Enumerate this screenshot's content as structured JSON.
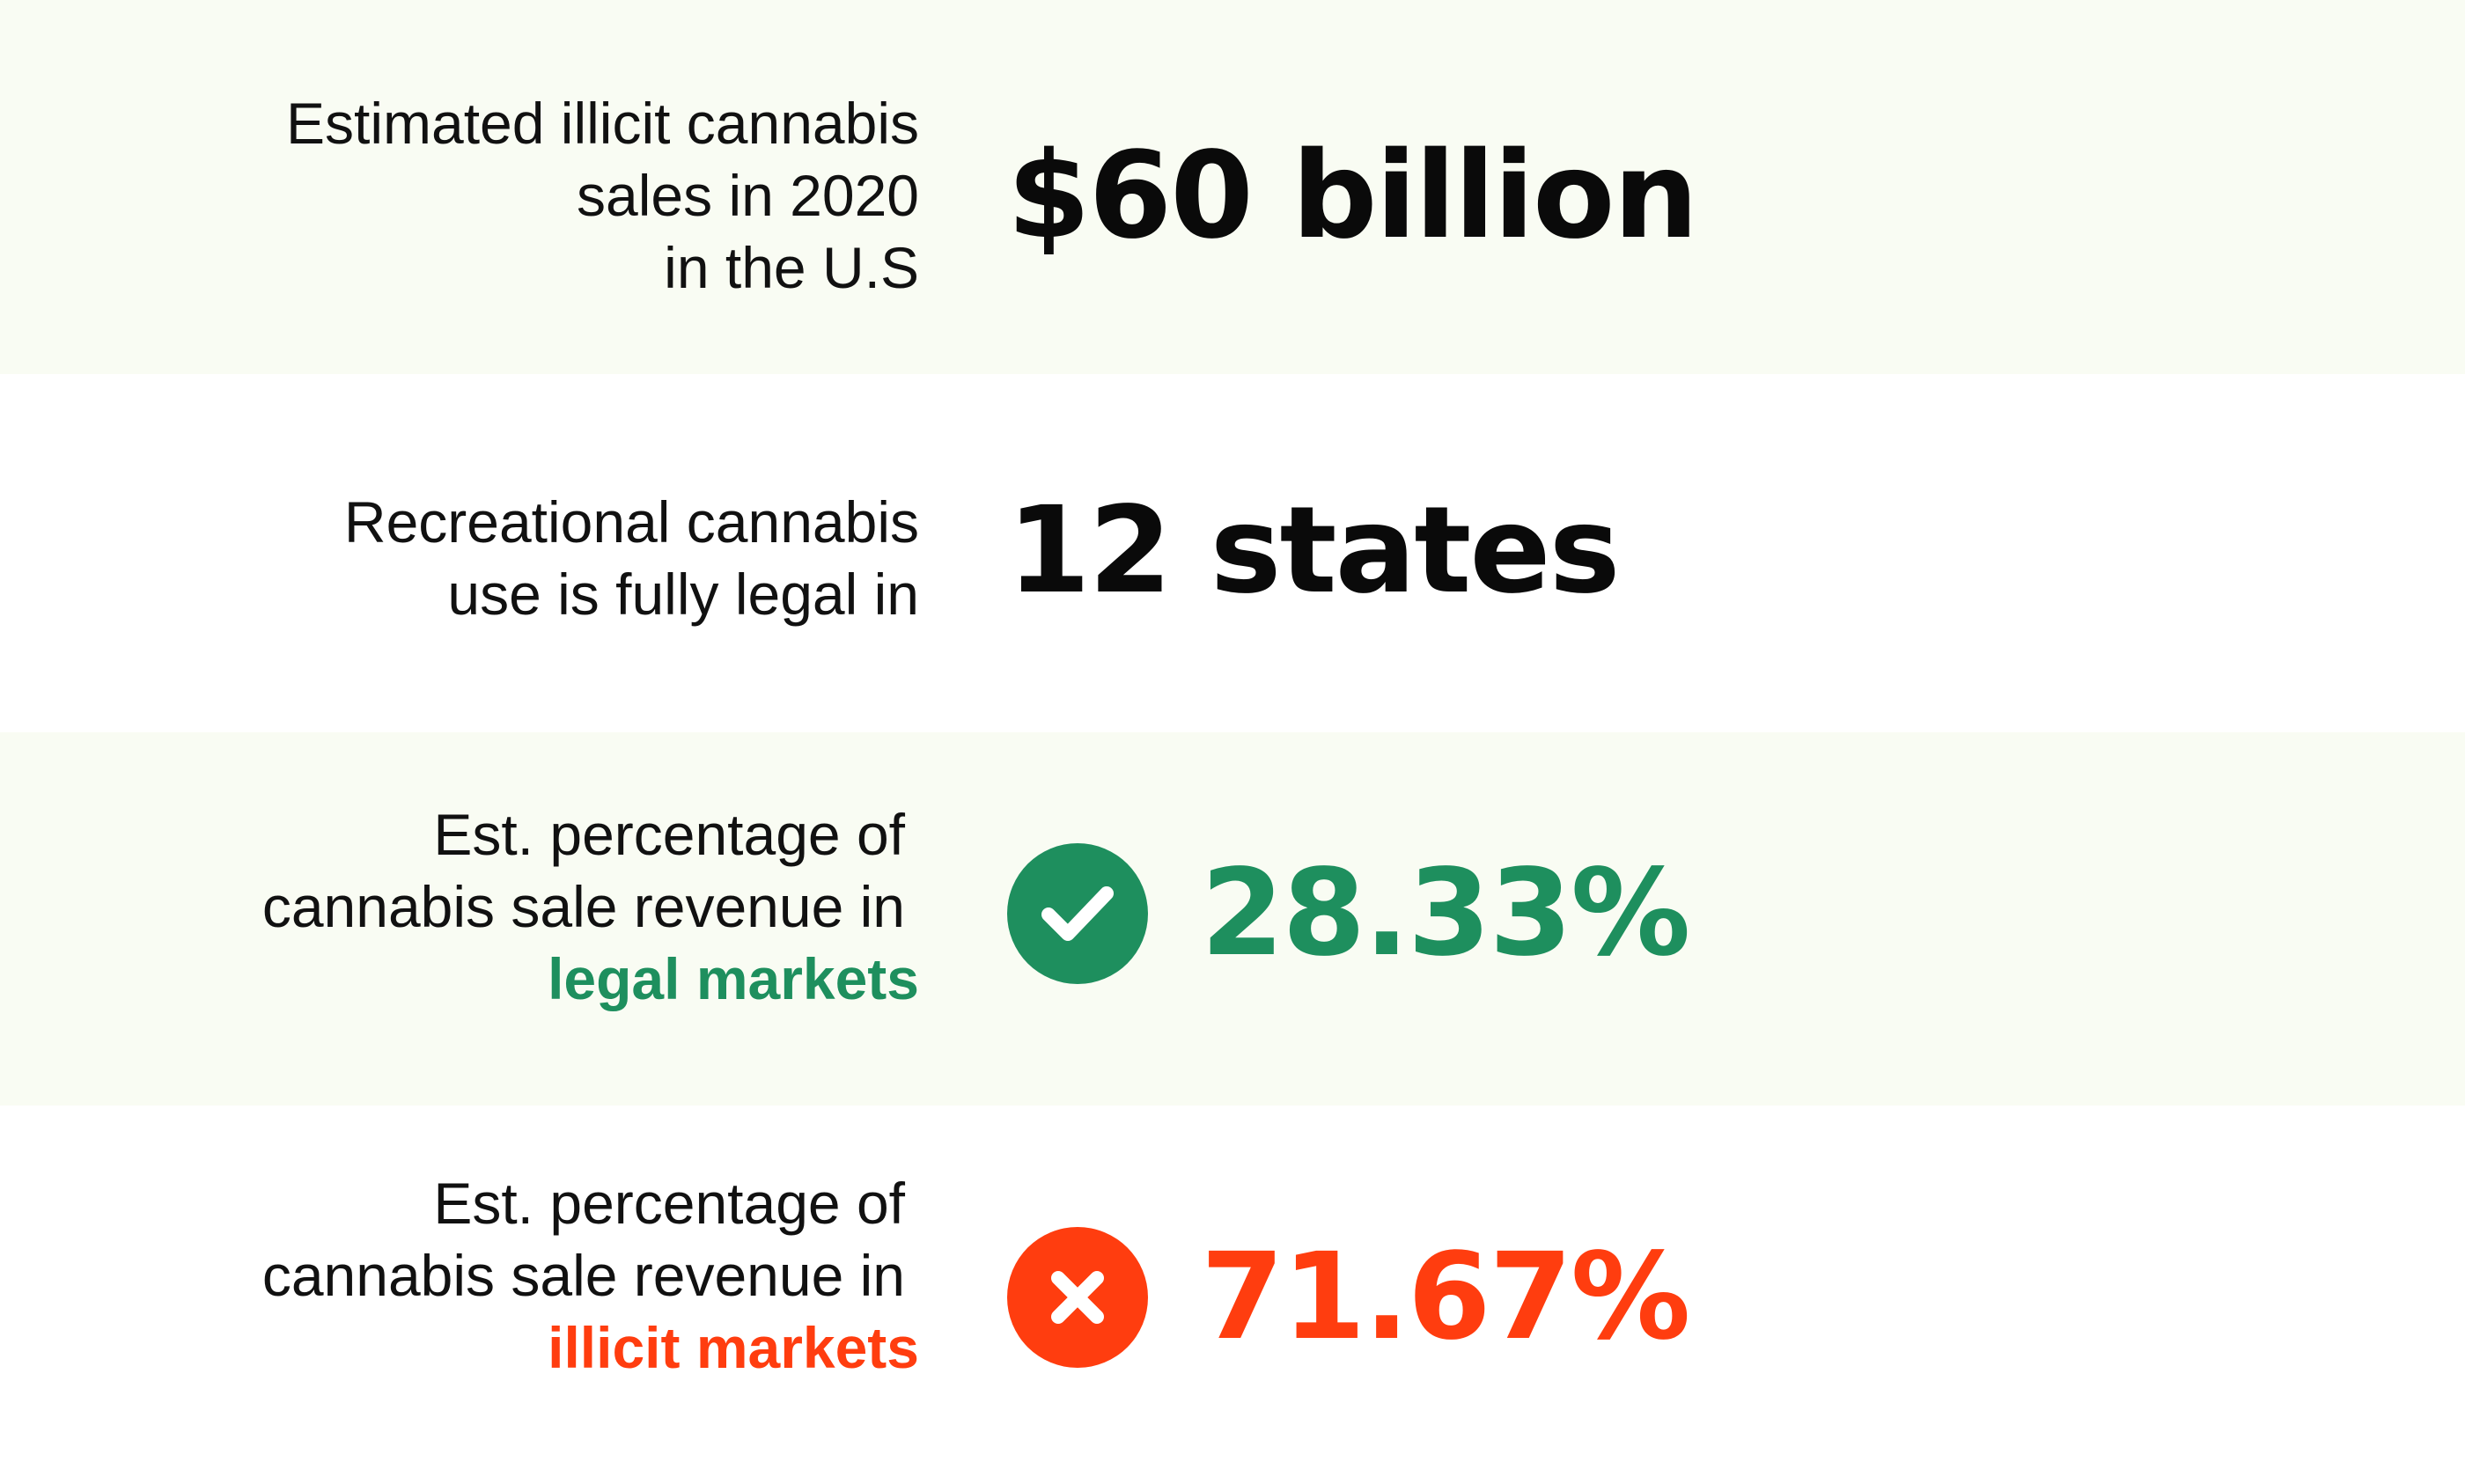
{
  "colors": {
    "tint_background": "#f9fcf3",
    "text": "#111111",
    "legal_green": "#1e8f5e",
    "illicit_red": "#ff3d0f"
  },
  "stats": [
    {
      "label_lines": [
        "Estimated illicit cannabis",
        "sales in 2020",
        "in the U.S"
      ],
      "value": "$60 billion"
    },
    {
      "label_lines": [
        "Recreational cannabis",
        "use is fully legal in"
      ],
      "value": "12 states"
    },
    {
      "label_lines": [
        "Est. percentage of",
        "cannabis sale revenue in"
      ],
      "label_accent": "legal markets",
      "icon": "check-icon",
      "value": "28.33%"
    },
    {
      "label_lines": [
        "Est. percentage of",
        "cannabis sale revenue in"
      ],
      "label_accent": "illicit markets",
      "icon": "x-icon",
      "value": "71.67%"
    }
  ]
}
